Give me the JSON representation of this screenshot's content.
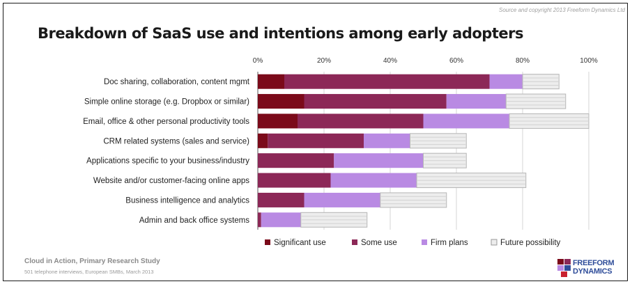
{
  "copyright": "Source and copyright 2013 Freeform Dynamics Ltd",
  "footer": {
    "study": "Cloud in Action, Primary Research Study",
    "detail": "501 telephone interviews, European SMBs, March 2013"
  },
  "logo": {
    "line1": "FREEFORM",
    "line2": "DYNAMICS"
  },
  "colors": {
    "significant": "#7b0a1a",
    "some": "#8c2857",
    "firm": "#b98ae3",
    "future": "#ededed"
  },
  "chart_data": {
    "type": "bar",
    "orientation": "horizontal",
    "stacked": true,
    "title": "Breakdown of SaaS use and intentions among early adopters",
    "xlim": [
      0,
      100
    ],
    "xticks": [
      "0%",
      "20%",
      "40%",
      "60%",
      "80%",
      "100%"
    ],
    "categories": [
      "Doc sharing, collaboration, content mgmt",
      "Simple online storage (e.g. Dropbox or similar)",
      "Email, office & other personal productivity tools",
      "CRM related systems (sales and service)",
      "Applications specific to your business/industry",
      "Website and/or customer-facing online apps",
      "Business intelligence and analytics",
      "Admin and back office systems"
    ],
    "series": [
      {
        "name": "Significant use",
        "values": [
          8,
          14,
          12,
          3,
          0,
          0,
          0,
          0
        ]
      },
      {
        "name": "Some use",
        "values": [
          62,
          43,
          38,
          29,
          23,
          22,
          14,
          1
        ]
      },
      {
        "name": "Firm plans",
        "values": [
          10,
          18,
          26,
          14,
          27,
          26,
          23,
          12
        ]
      },
      {
        "name": "Future possibility",
        "values": [
          11,
          18,
          24,
          17,
          13,
          33,
          20,
          20
        ]
      }
    ],
    "legend_position": "bottom",
    "grid": true
  }
}
